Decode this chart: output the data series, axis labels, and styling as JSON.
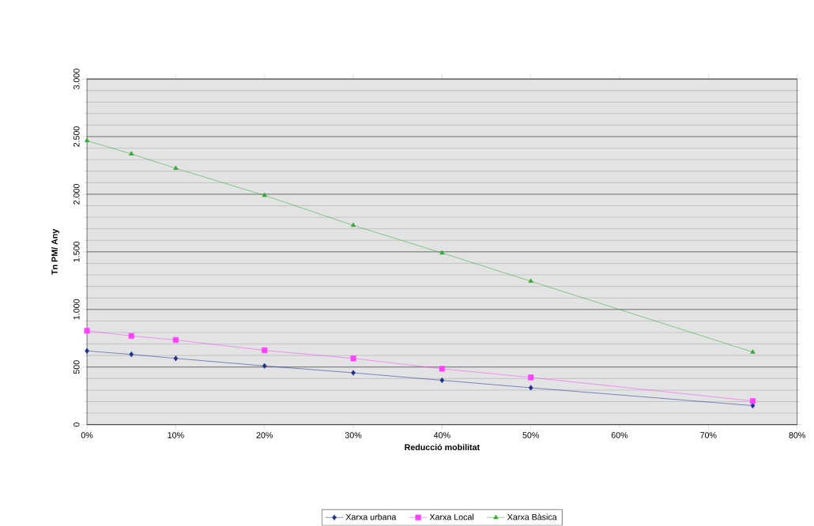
{
  "chart_data": {
    "type": "line",
    "xlabel": "Reducció mobilitat",
    "ylabel": "Tn PM/ Any",
    "x": [
      0,
      5,
      10,
      20,
      30,
      40,
      50,
      75
    ],
    "series": [
      {
        "name": "Xarxa urbana",
        "color": "#1f2f8f",
        "marker": "diamond",
        "values": [
          640,
          610,
          575,
          510,
          450,
          385,
          320,
          165
        ]
      },
      {
        "name": "Xarxa Local",
        "color": "#ff44ff",
        "marker": "square",
        "values": [
          815,
          770,
          735,
          645,
          575,
          485,
          410,
          205
        ]
      },
      {
        "name": "Xarxa Bàsica",
        "color": "#33aa33",
        "marker": "triangle",
        "values": [
          2465,
          2350,
          2225,
          1990,
          1730,
          1490,
          1245,
          630
        ]
      }
    ],
    "xlim": [
      0,
      80
    ],
    "ylim": [
      0,
      3000
    ],
    "xticks": [
      {
        "value": 0,
        "label": "0%"
      },
      {
        "value": 10,
        "label": "10%"
      },
      {
        "value": 20,
        "label": "20%"
      },
      {
        "value": 30,
        "label": "30%"
      },
      {
        "value": 40,
        "label": "40%"
      },
      {
        "value": 50,
        "label": "50%"
      },
      {
        "value": 60,
        "label": "60%"
      },
      {
        "value": 70,
        "label": "70%"
      },
      {
        "value": 80,
        "label": "80%"
      }
    ],
    "yticks": [
      0,
      500,
      {
        "value": 1000,
        "label": "1.000"
      },
      {
        "value": 1500,
        "label": "1.500"
      },
      {
        "value": 2000,
        "label": "2.000"
      },
      {
        "value": 2500,
        "label": "2.500"
      },
      {
        "value": 3000,
        "label": "3.000"
      }
    ],
    "grid": "y",
    "legend": "bottom",
    "line_style": "solid"
  }
}
